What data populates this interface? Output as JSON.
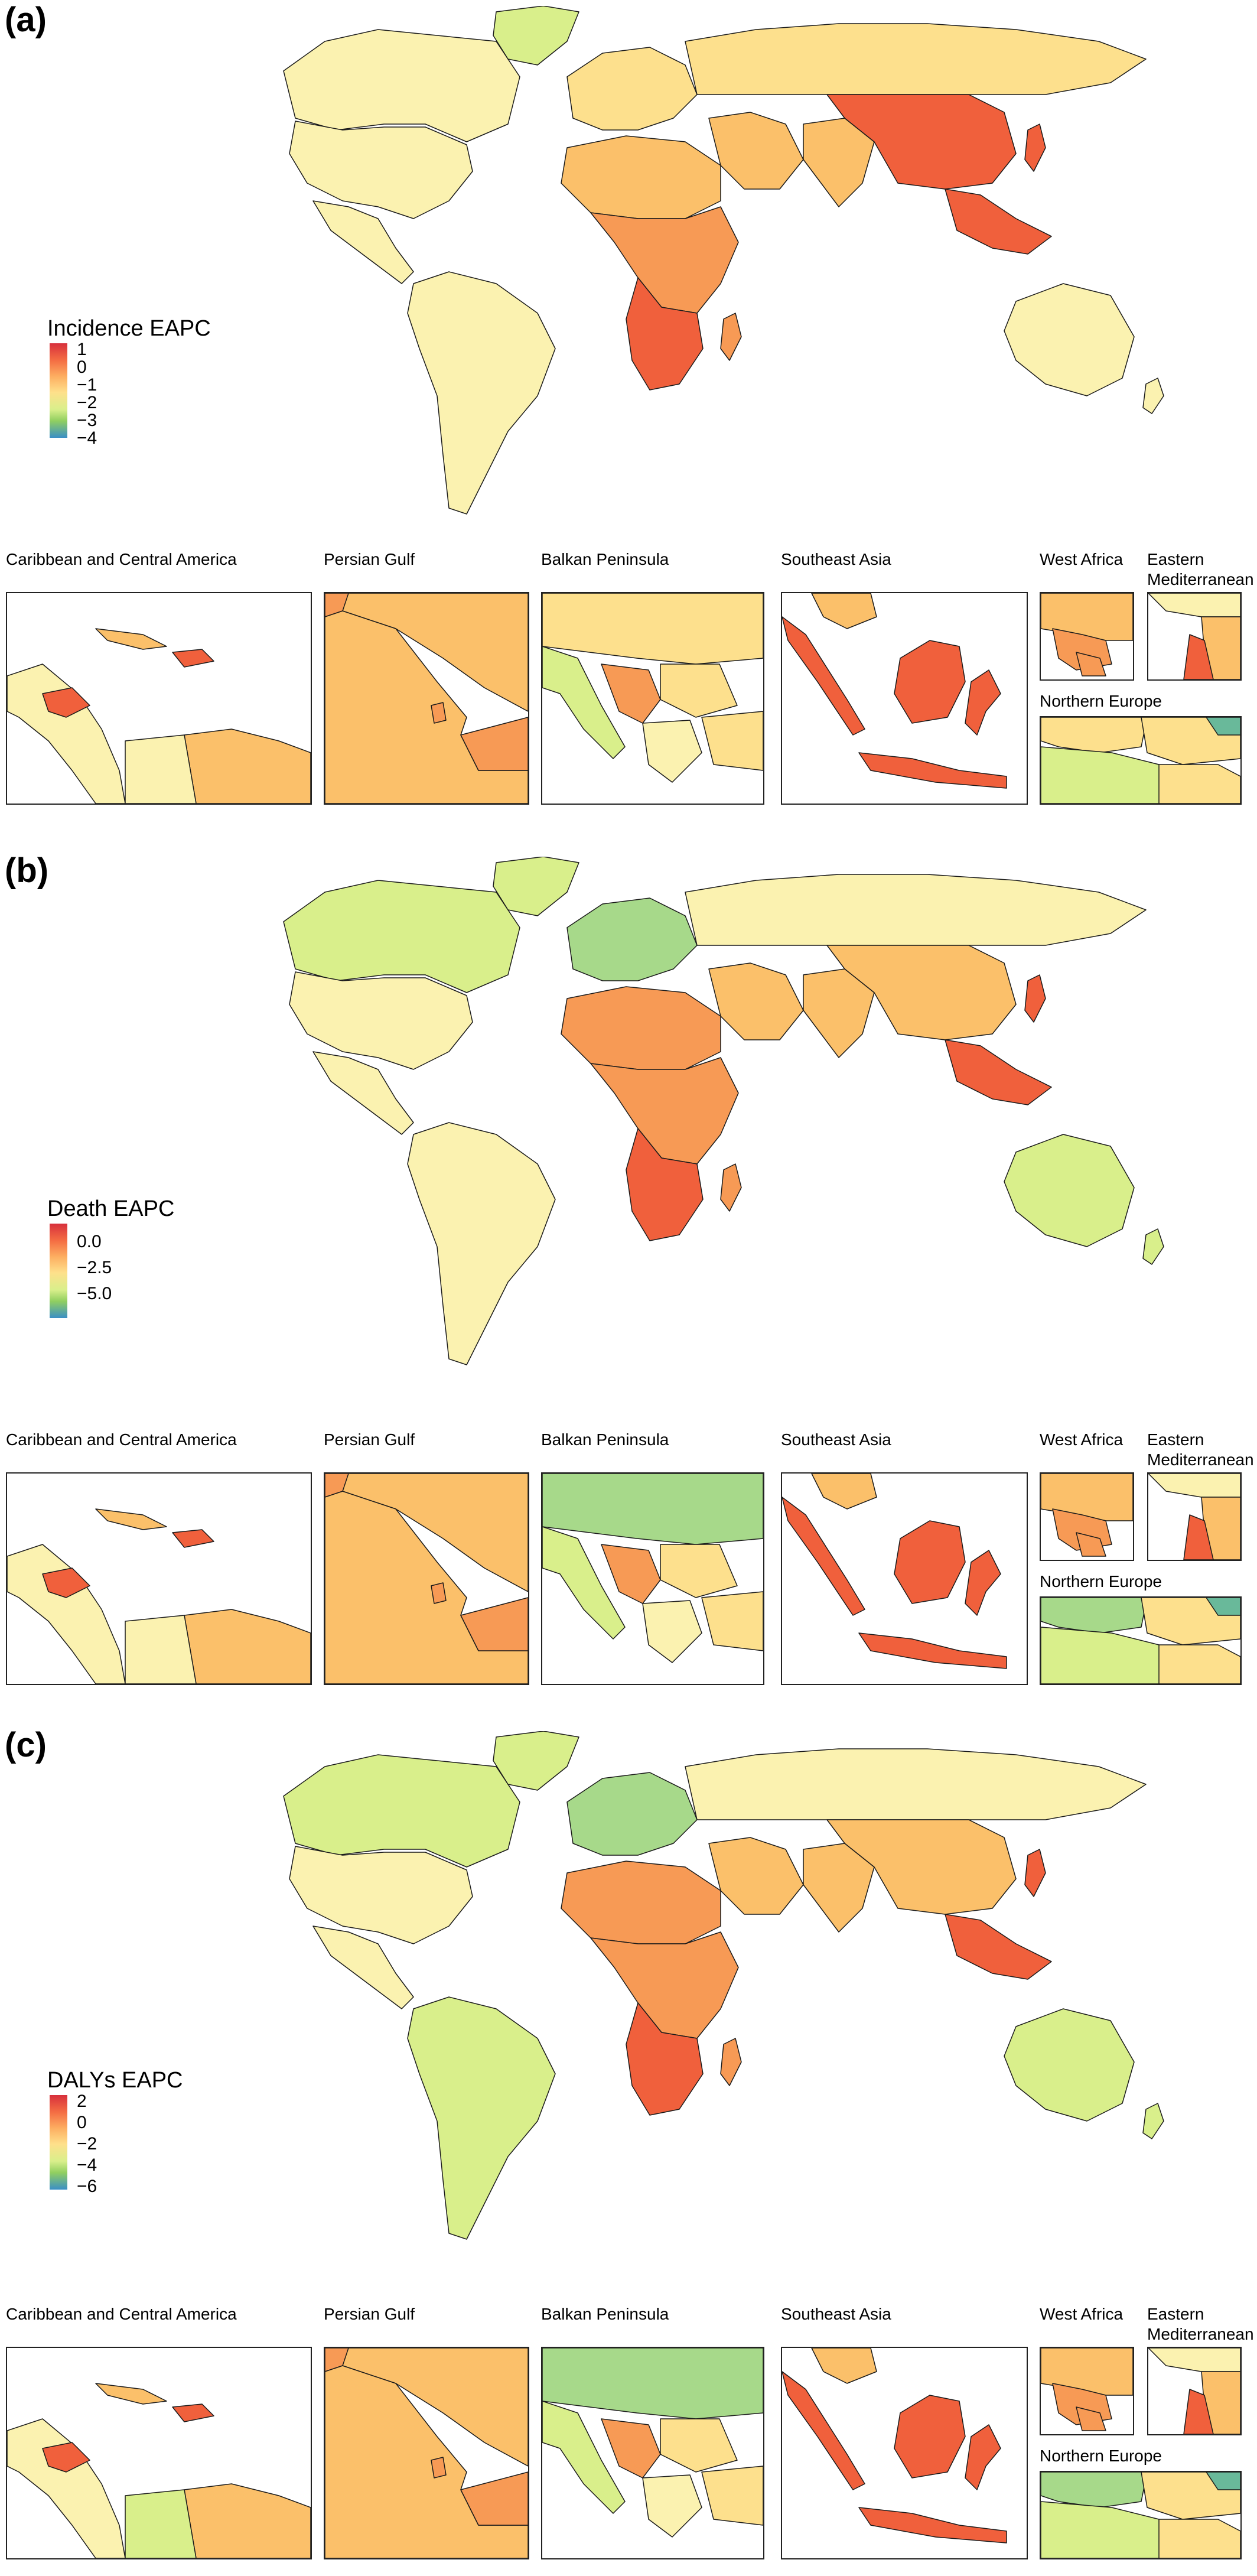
{
  "colors": {
    "red": "#d7303c",
    "orange_red": "#f0603c",
    "orange": "#f79a55",
    "light_orange": "#fbc06a",
    "yellow": "#fde08d",
    "pale_yellow": "#fbf2b0",
    "light_green": "#d9ef8b",
    "green": "#a7d98a",
    "teal": "#69b99a",
    "blue": "#3a8fc6",
    "border": "#1a1a1a"
  },
  "panels": [
    {
      "label": "(a)",
      "legend_title": "Incidence EAPC",
      "legend_ticks": [
        "1",
        "0",
        "−1",
        "−2",
        "−3",
        "−4"
      ],
      "palette": {
        "americas": "pale_yellow",
        "canada": "pale_yellow",
        "greenland": "light_green",
        "south_america": "pale_yellow",
        "europe": "yellow",
        "russia": "yellow",
        "china": "orange_red",
        "south_asia": "light_orange",
        "middle_east": "light_orange",
        "north_africa": "light_orange",
        "sub_africa": "orange",
        "south_africa": "orange_red",
        "se_asia": "orange_red",
        "australia": "pale_yellow"
      }
    },
    {
      "label": "(b)",
      "legend_title": "Death EAPC",
      "legend_ticks": [
        "0.0",
        "−2.5",
        "−5.0"
      ],
      "palette": {
        "americas": "pale_yellow",
        "canada": "light_green",
        "greenland": "light_green",
        "south_america": "pale_yellow",
        "europe": "green",
        "russia": "pale_yellow",
        "china": "light_orange",
        "south_asia": "light_orange",
        "middle_east": "light_orange",
        "north_africa": "orange",
        "sub_africa": "orange",
        "south_africa": "orange_red",
        "se_asia": "orange_red",
        "australia": "light_green"
      }
    },
    {
      "label": "(c)",
      "legend_title": "DALYs EAPC",
      "legend_ticks": [
        "2",
        "0",
        "−2",
        "−4",
        "−6"
      ],
      "palette": {
        "americas": "pale_yellow",
        "canada": "light_green",
        "greenland": "light_green",
        "south_america": "light_green",
        "europe": "green",
        "russia": "pale_yellow",
        "china": "light_orange",
        "south_asia": "light_orange",
        "middle_east": "light_orange",
        "north_africa": "orange",
        "sub_africa": "orange",
        "south_africa": "orange_red",
        "se_asia": "orange_red",
        "australia": "light_green"
      }
    }
  ],
  "insets": {
    "caribbean": "Caribbean and Central America",
    "persian_gulf": "Persian Gulf",
    "balkan": "Balkan Peninsula",
    "southeast_asia": "Southeast Asia",
    "west_africa": "West Africa",
    "eastern_med_line1": "Eastern",
    "eastern_med_line2": "Mediterranean",
    "northern_europe": "Northern Europe"
  }
}
